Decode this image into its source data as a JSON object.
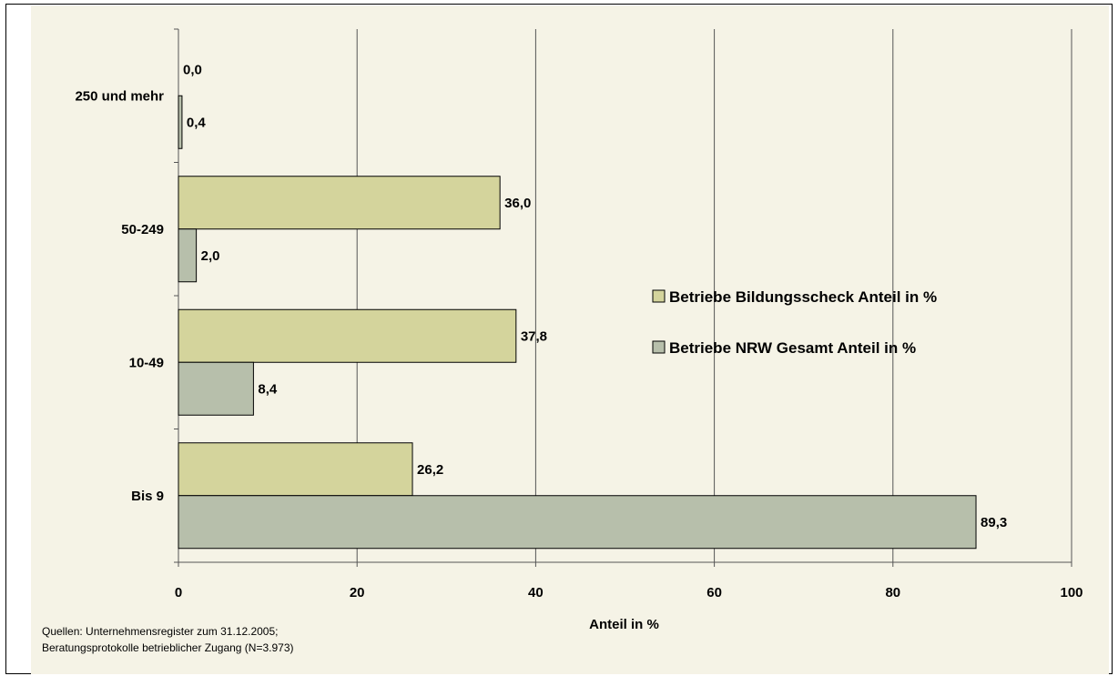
{
  "chart_data": {
    "type": "bar",
    "orientation": "horizontal",
    "categories": [
      "250 und mehr",
      "50-249",
      "10-49",
      "Bis 9"
    ],
    "series": [
      {
        "name": "Betriebe Bildungsscheck Anteil in %",
        "values": [
          0.0,
          36.0,
          37.8,
          26.2
        ],
        "labels": [
          "0,0",
          "36,0",
          "37,8",
          "26,2"
        ],
        "color": "#d4d49c"
      },
      {
        "name": "Betriebe NRW Gesamt Anteil in %",
        "values": [
          0.4,
          2.0,
          8.4,
          89.3
        ],
        "labels": [
          "0,4",
          "2,0",
          "8,4",
          "89,3"
        ],
        "color": "#b7bfab"
      }
    ],
    "xlabel": "Anteil in %",
    "xlim": [
      0,
      100
    ],
    "xticks": [
      0,
      20,
      40,
      60,
      80,
      100
    ],
    "grid": "vertical",
    "legend_position": "right"
  },
  "source": {
    "line1": "Quellen: Unternehmensregister zum 31.12.2005;",
    "line2": "Beratungsprotokolle betrieblicher Zugang (N=3.973)"
  }
}
